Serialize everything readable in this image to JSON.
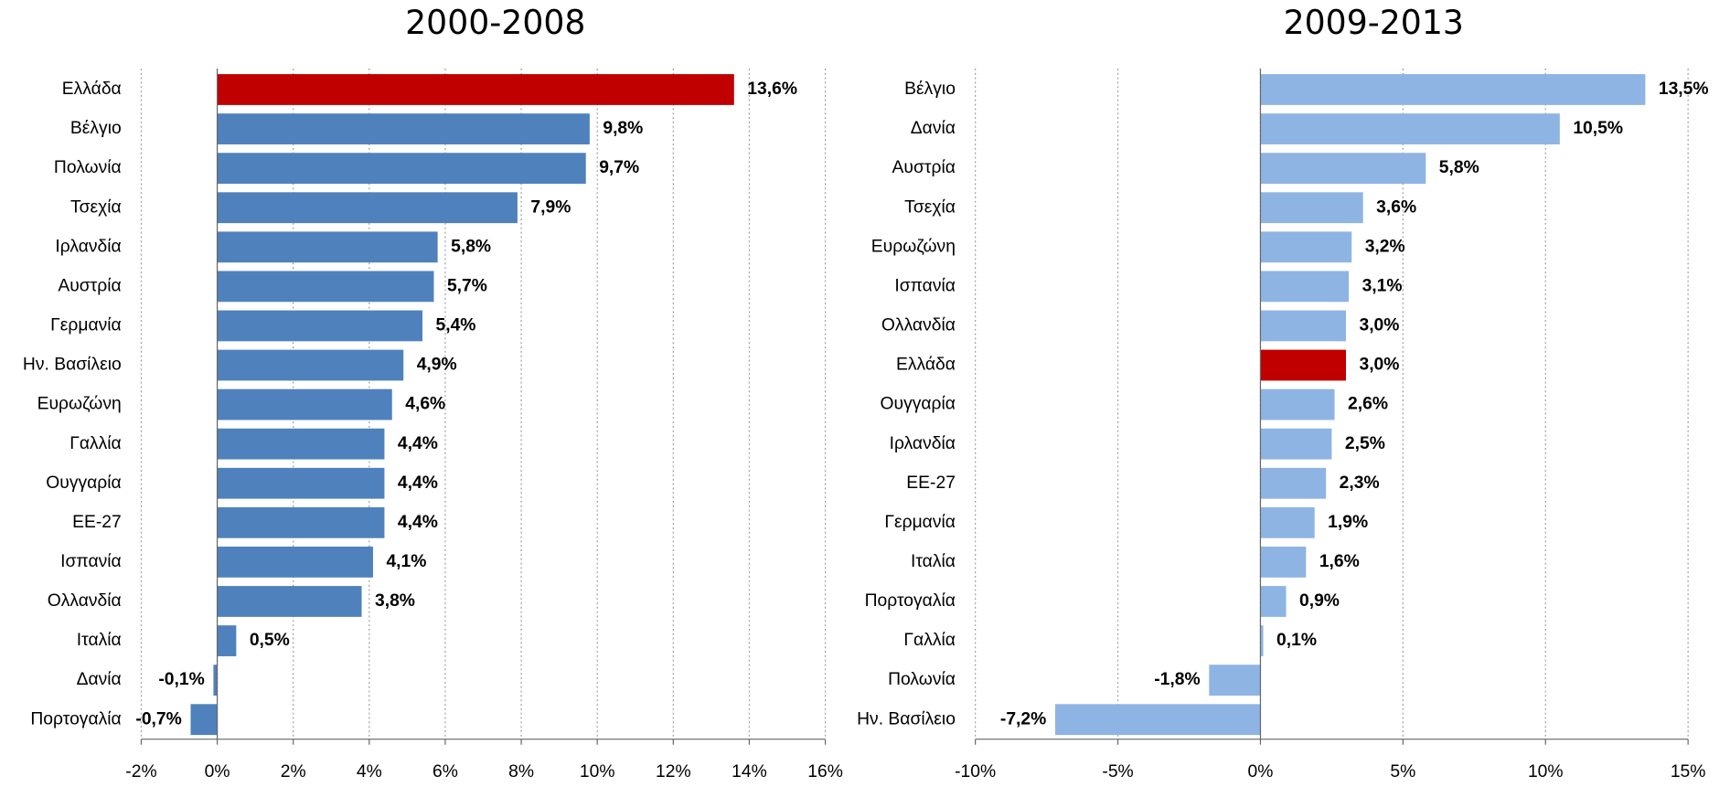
{
  "chart_data": [
    {
      "type": "bar",
      "orientation": "horizontal",
      "title": "2000-2008",
      "categories": [
        "Ελλάδα",
        "Βέλγιο",
        "Πολωνία",
        "Τσεχία",
        "Ιρλανδία",
        "Αυστρία",
        "Γερμανία",
        "Ην. Βασίλειο",
        "Ευρωζώνη",
        "Γαλλία",
        "Ουγγαρία",
        "ΕΕ-27",
        "Ισπανία",
        "Ολλανδία",
        "Ιταλία",
        "Δανία",
        "Πορτογαλία"
      ],
      "values": [
        13.6,
        9.8,
        9.7,
        7.9,
        5.8,
        5.7,
        5.4,
        4.9,
        4.6,
        4.4,
        4.4,
        4.4,
        4.1,
        3.8,
        0.5,
        -0.1,
        -0.7
      ],
      "value_labels": [
        "13,6%",
        "9,8%",
        "9,7%",
        "7,9%",
        "5,8%",
        "5,7%",
        "5,4%",
        "4,9%",
        "4,6%",
        "4,4%",
        "4,4%",
        "4,4%",
        "4,1%",
        "3,8%",
        "0,5%",
        "-0,1%",
        "-0,7%"
      ],
      "colors": [
        "#c00000",
        "#4f81bd",
        "#4f81bd",
        "#4f81bd",
        "#4f81bd",
        "#4f81bd",
        "#4f81bd",
        "#4f81bd",
        "#4f81bd",
        "#4f81bd",
        "#4f81bd",
        "#4f81bd",
        "#4f81bd",
        "#4f81bd",
        "#4f81bd",
        "#4f81bd",
        "#4f81bd"
      ],
      "xlim": [
        -2,
        16
      ],
      "xticks": [
        {
          "value": -2,
          "label": "-2%"
        },
        {
          "value": 0,
          "label": "0%"
        },
        {
          "value": 2,
          "label": "2%"
        },
        {
          "value": 4,
          "label": "4%"
        },
        {
          "value": 6,
          "label": "6%"
        },
        {
          "value": 8,
          "label": "8%"
        },
        {
          "value": 10,
          "label": "10%"
        },
        {
          "value": 12,
          "label": "12%"
        },
        {
          "value": 14,
          "label": "14%"
        },
        {
          "value": 16,
          "label": "16%"
        }
      ],
      "grid": true
    },
    {
      "type": "bar",
      "orientation": "horizontal",
      "title": "2009-2013",
      "categories": [
        "Βέλγιο",
        "Δανία",
        "Αυστρία",
        "Τσεχία",
        "Ευρωζώνη",
        "Ισπανία",
        "Ολλανδία",
        "Ελλάδα",
        "Ουγγαρία",
        "Ιρλανδία",
        "ΕΕ-27",
        "Γερμανία",
        "Ιταλία",
        "Πορτογαλία",
        "Γαλλία",
        "Πολωνία",
        "Ην. Βασίλειο"
      ],
      "values": [
        13.5,
        10.5,
        5.8,
        3.6,
        3.2,
        3.1,
        3.0,
        3.0,
        2.6,
        2.5,
        2.3,
        1.9,
        1.6,
        0.9,
        0.1,
        -1.8,
        -7.2
      ],
      "value_labels": [
        "13,5%",
        "10,5%",
        "5,8%",
        "3,6%",
        "3,2%",
        "3,1%",
        "3,0%",
        "3,0%",
        "2,6%",
        "2,5%",
        "2,3%",
        "1,9%",
        "1,6%",
        "0,9%",
        "0,1%",
        "-1,8%",
        "-7,2%"
      ],
      "colors": [
        "#8eb4e3",
        "#8eb4e3",
        "#8eb4e3",
        "#8eb4e3",
        "#8eb4e3",
        "#8eb4e3",
        "#8eb4e3",
        "#c00000",
        "#8eb4e3",
        "#8eb4e3",
        "#8eb4e3",
        "#8eb4e3",
        "#8eb4e3",
        "#8eb4e3",
        "#8eb4e3",
        "#8eb4e3",
        "#8eb4e3"
      ],
      "xlim": [
        -10,
        15
      ],
      "xticks": [
        {
          "value": -10,
          "label": "-10%"
        },
        {
          "value": -5,
          "label": "-5%"
        },
        {
          "value": 0,
          "label": "0%"
        },
        {
          "value": 5,
          "label": "5%"
        },
        {
          "value": 10,
          "label": "10%"
        },
        {
          "value": 15,
          "label": "15%"
        }
      ],
      "grid": true
    }
  ]
}
